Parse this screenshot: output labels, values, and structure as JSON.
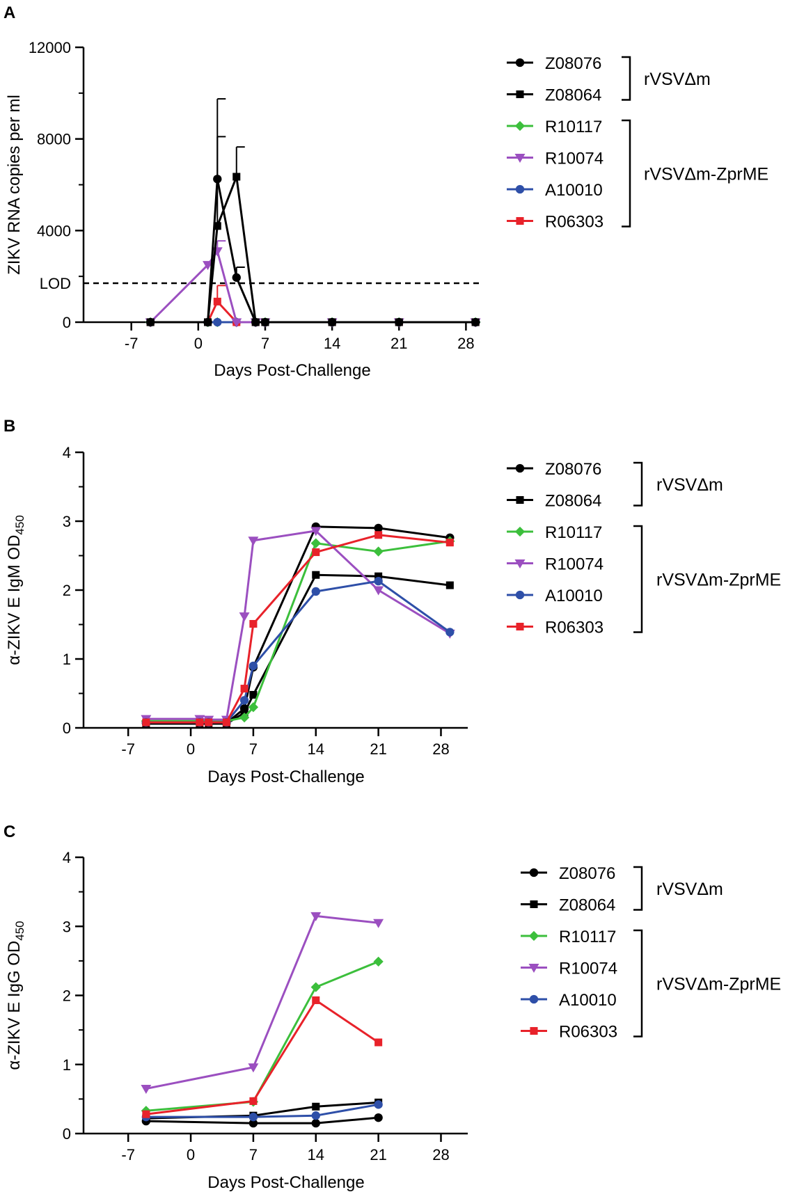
{
  "series_styles": [
    {
      "name": "Z08076",
      "color": "#000000",
      "marker": "circle"
    },
    {
      "name": "Z08064",
      "color": "#000000",
      "marker": "square"
    },
    {
      "name": "R10117",
      "color": "#3cbf3c",
      "marker": "diamond"
    },
    {
      "name": "R10074",
      "color": "#9b4fc0",
      "marker": "triangle-down"
    },
    {
      "name": "A10010",
      "color": "#2e4fa8",
      "marker": "circle"
    },
    {
      "name": "R06303",
      "color": "#e8222a",
      "marker": "square"
    }
  ],
  "groups": [
    {
      "label": "rVSVΔm",
      "members": [
        "Z08076",
        "Z08064"
      ]
    },
    {
      "label": "rVSVΔm-ZprME",
      "members": [
        "R10117",
        "R10074",
        "A10010",
        "R06303"
      ]
    }
  ],
  "chart_data": [
    {
      "panel": "A",
      "type": "line",
      "xlabel": "Days Post-Challenge",
      "ylabel": "ZIKV RNA copies per ml",
      "xlim": [
        -12,
        29.5
      ],
      "ylim": [
        0,
        12000
      ],
      "xticks": [
        -7,
        0,
        7,
        14,
        21,
        28
      ],
      "yticks": [
        0,
        4000,
        8000,
        12000
      ],
      "lod": {
        "label": "LOD",
        "value": 1700
      },
      "series": [
        {
          "name": "Z08076",
          "x": [
            -5,
            1,
            2,
            4,
            6,
            7,
            14,
            21,
            29
          ],
          "y": [
            0,
            0,
            6250,
            1950,
            0,
            0,
            0,
            0,
            0
          ],
          "err": [
            0,
            0,
            3500,
            450,
            0,
            0,
            0,
            0,
            0
          ]
        },
        {
          "name": "Z08064",
          "x": [
            -5,
            1,
            2,
            4,
            6,
            7,
            14,
            21,
            29
          ],
          "y": [
            0,
            0,
            4200,
            6350,
            0,
            0,
            0,
            0,
            0
          ],
          "err": [
            0,
            0,
            3900,
            1300,
            0,
            0,
            0,
            0,
            0
          ]
        },
        {
          "name": "R10117",
          "x": [
            -5,
            1,
            2,
            4,
            6,
            7,
            14,
            21,
            29
          ],
          "y": [
            0,
            0,
            0,
            0,
            0,
            0,
            0,
            0,
            0
          ],
          "err": [
            0,
            0,
            0,
            0,
            0,
            0,
            0,
            0,
            0
          ]
        },
        {
          "name": "R10074",
          "x": [
            -5,
            1,
            2,
            4,
            6,
            7,
            14,
            21,
            29
          ],
          "y": [
            0,
            2500,
            3100,
            0,
            0,
            0,
            0,
            0,
            0
          ],
          "err": [
            0,
            0,
            450,
            0,
            0,
            0,
            0,
            0,
            0
          ]
        },
        {
          "name": "A10010",
          "x": [
            -5,
            1,
            2,
            4,
            6,
            7,
            14,
            21,
            29
          ],
          "y": [
            0,
            0,
            0,
            0,
            0,
            0,
            0,
            0,
            0
          ],
          "err": [
            0,
            0,
            0,
            0,
            0,
            0,
            0,
            0,
            0
          ]
        },
        {
          "name": "R06303",
          "x": [
            -5,
            1,
            2,
            4,
            6,
            7,
            14,
            21,
            29
          ],
          "y": [
            0,
            0,
            900,
            0,
            0,
            0,
            0,
            0,
            0
          ],
          "err": [
            0,
            0,
            700,
            0,
            0,
            0,
            0,
            0,
            0
          ]
        }
      ]
    },
    {
      "panel": "B",
      "type": "line",
      "xlabel": "Days Post-Challenge",
      "ylabel": "α-ZIKV E IgM OD",
      "ylabel_sub": "450",
      "xlim": [
        -12,
        31
      ],
      "ylim": [
        0,
        4
      ],
      "xticks": [
        -7,
        0,
        7,
        14,
        21,
        28
      ],
      "yticks": [
        0,
        1,
        2,
        3,
        4
      ],
      "series": [
        {
          "name": "Z08076",
          "x": [
            -5,
            1,
            2,
            4,
            6,
            7,
            14,
            21,
            29
          ],
          "y": [
            0.07,
            0.07,
            0.07,
            0.07,
            0.28,
            0.88,
            2.92,
            2.9,
            2.76
          ]
        },
        {
          "name": "Z08064",
          "x": [
            -5,
            1,
            2,
            4,
            6,
            7,
            14,
            21,
            29
          ],
          "y": [
            0.06,
            0.06,
            0.06,
            0.06,
            0.22,
            0.48,
            2.22,
            2.2,
            2.07
          ]
        },
        {
          "name": "R10117",
          "x": [
            -5,
            1,
            2,
            4,
            6,
            7,
            14,
            21,
            29
          ],
          "y": [
            0.1,
            0.1,
            0.1,
            0.1,
            0.15,
            0.3,
            2.68,
            2.56,
            2.71
          ]
        },
        {
          "name": "R10074",
          "x": [
            -5,
            1,
            2,
            4,
            6,
            7,
            14,
            21,
            29
          ],
          "y": [
            0.13,
            0.13,
            0.12,
            0.12,
            1.62,
            2.72,
            2.86,
            2.0,
            1.37
          ]
        },
        {
          "name": "A10010",
          "x": [
            -5,
            1,
            2,
            4,
            6,
            7,
            14,
            21,
            29
          ],
          "y": [
            0.08,
            0.08,
            0.08,
            0.08,
            0.4,
            0.9,
            1.98,
            2.13,
            1.39
          ]
        },
        {
          "name": "R06303",
          "x": [
            -5,
            1,
            2,
            4,
            6,
            7,
            14,
            21,
            29
          ],
          "y": [
            0.08,
            0.08,
            0.08,
            0.08,
            0.57,
            1.51,
            2.55,
            2.8,
            2.69
          ]
        }
      ]
    },
    {
      "panel": "C",
      "type": "line",
      "xlabel": "Days Post-Challenge",
      "ylabel": "α-ZIKV E IgG OD",
      "ylabel_sub": "450",
      "xlim": [
        -12,
        31
      ],
      "ylim": [
        0,
        4
      ],
      "xticks": [
        -7,
        0,
        7,
        14,
        21,
        28
      ],
      "yticks": [
        0,
        1,
        2,
        3,
        4
      ],
      "series": [
        {
          "name": "Z08076",
          "x": [
            -5,
            7,
            14,
            21
          ],
          "y": [
            0.18,
            0.15,
            0.15,
            0.23
          ]
        },
        {
          "name": "Z08064",
          "x": [
            -5,
            7,
            14,
            21
          ],
          "y": [
            0.22,
            0.26,
            0.39,
            0.45
          ]
        },
        {
          "name": "R10117",
          "x": [
            -5,
            7,
            14,
            21
          ],
          "y": [
            0.33,
            0.46,
            2.12,
            2.49
          ]
        },
        {
          "name": "R10074",
          "x": [
            -5,
            7,
            14,
            21
          ],
          "y": [
            0.65,
            0.96,
            3.15,
            3.05
          ]
        },
        {
          "name": "A10010",
          "x": [
            -5,
            7,
            14,
            21
          ],
          "y": [
            0.24,
            0.24,
            0.26,
            0.42
          ]
        },
        {
          "name": "R06303",
          "x": [
            -5,
            7,
            14,
            21
          ],
          "y": [
            0.28,
            0.47,
            1.93,
            1.32
          ]
        }
      ]
    }
  ]
}
